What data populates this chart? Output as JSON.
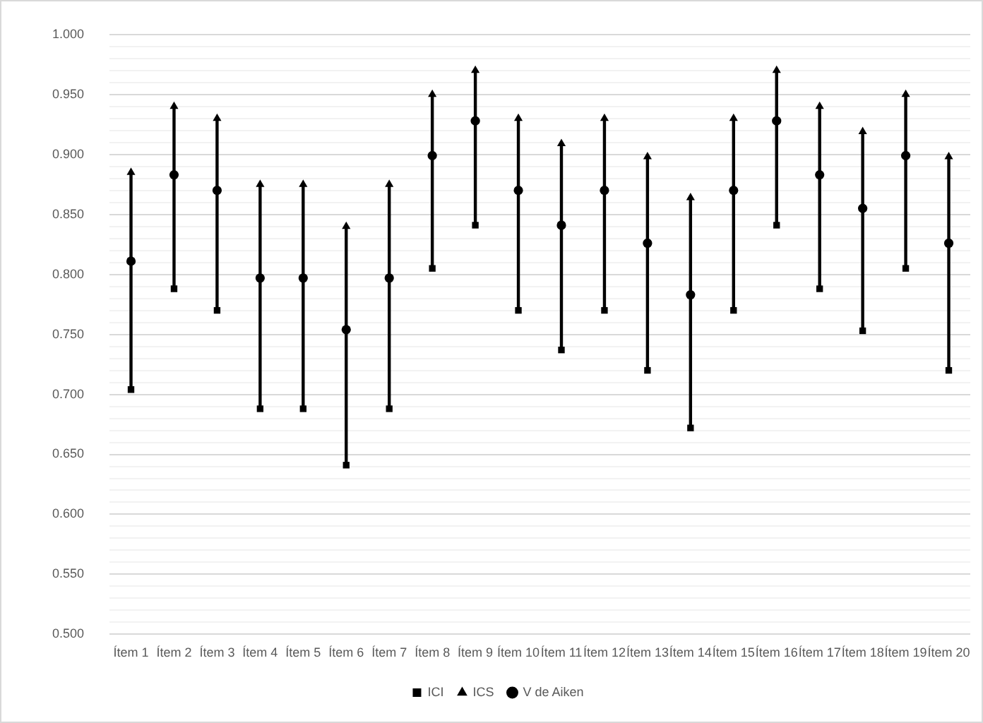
{
  "chart_data": {
    "type": "scatter",
    "categories": [
      "Ítem 1",
      "Ítem 2",
      "Ítem 3",
      "Ítem 4",
      "Ítem 5",
      "Ítem 6",
      "Ítem 7",
      "Ítem 8",
      "Ítem 9",
      "Ítem 10",
      "Ítem 11",
      "Ítem 12",
      "Ítem 13",
      "Ítem 14",
      "Ítem 15",
      "Ítem 16",
      "Ítem 17",
      "Ítem 18",
      "Ítem 19",
      "Ítem 20"
    ],
    "series": [
      {
        "name": "ICI",
        "color": "#000000",
        "marker": "square",
        "values": [
          0.704,
          0.788,
          0.77,
          0.688,
          0.688,
          0.641,
          0.688,
          0.805,
          0.841,
          0.77,
          0.737,
          0.77,
          0.72,
          0.672,
          0.77,
          0.841,
          0.788,
          0.753,
          0.805,
          0.72
        ]
      },
      {
        "name": "ICS",
        "color": "#000000",
        "marker": "triangle",
        "values": [
          0.885,
          0.94,
          0.93,
          0.875,
          0.875,
          0.84,
          0.875,
          0.95,
          0.97,
          0.93,
          0.909,
          0.93,
          0.898,
          0.864,
          0.93,
          0.97,
          0.94,
          0.919,
          0.95,
          0.898
        ]
      },
      {
        "name": "V de Aiken",
        "color": "#000000",
        "marker": "circle",
        "values": [
          0.811,
          0.883,
          0.87,
          0.797,
          0.797,
          0.754,
          0.797,
          0.899,
          0.928,
          0.87,
          0.841,
          0.87,
          0.826,
          0.783,
          0.87,
          0.928,
          0.883,
          0.855,
          0.899,
          0.826
        ]
      }
    ],
    "ylim": [
      0.5,
      1.0
    ],
    "yticks": [
      {
        "value": 0.5,
        "label": "0.500"
      },
      {
        "value": 0.51,
        "label": null
      },
      {
        "value": 0.52,
        "label": null
      },
      {
        "value": 0.53,
        "label": null
      },
      {
        "value": 0.54,
        "label": null
      },
      {
        "value": 0.55,
        "label": "0.550"
      },
      {
        "value": 0.56,
        "label": null
      },
      {
        "value": 0.57,
        "label": null
      },
      {
        "value": 0.58,
        "label": null
      },
      {
        "value": 0.59,
        "label": null
      },
      {
        "value": 0.6,
        "label": "0.600"
      },
      {
        "value": 0.61,
        "label": null
      },
      {
        "value": 0.62,
        "label": null
      },
      {
        "value": 0.63,
        "label": null
      },
      {
        "value": 0.64,
        "label": null
      },
      {
        "value": 0.65,
        "label": "0.650"
      },
      {
        "value": 0.66,
        "label": null
      },
      {
        "value": 0.67,
        "label": null
      },
      {
        "value": 0.68,
        "label": null
      },
      {
        "value": 0.69,
        "label": null
      },
      {
        "value": 0.7,
        "label": "0.700"
      },
      {
        "value": 0.71,
        "label": null
      },
      {
        "value": 0.72,
        "label": null
      },
      {
        "value": 0.73,
        "label": null
      },
      {
        "value": 0.74,
        "label": null
      },
      {
        "value": 0.75,
        "label": "0.750"
      },
      {
        "value": 0.76,
        "label": null
      },
      {
        "value": 0.77,
        "label": null
      },
      {
        "value": 0.78,
        "label": null
      },
      {
        "value": 0.79,
        "label": null
      },
      {
        "value": 0.8,
        "label": "0.800"
      },
      {
        "value": 0.81,
        "label": null
      },
      {
        "value": 0.82,
        "label": null
      },
      {
        "value": 0.83,
        "label": null
      },
      {
        "value": 0.84,
        "label": null
      },
      {
        "value": 0.85,
        "label": "0.850"
      },
      {
        "value": 0.86,
        "label": null
      },
      {
        "value": 0.87,
        "label": null
      },
      {
        "value": 0.88,
        "label": null
      },
      {
        "value": 0.89,
        "label": null
      },
      {
        "value": 0.9,
        "label": "0.900"
      },
      {
        "value": 0.91,
        "label": null
      },
      {
        "value": 0.92,
        "label": null
      },
      {
        "value": 0.93,
        "label": null
      },
      {
        "value": 0.94,
        "label": null
      },
      {
        "value": 0.95,
        "label": "0.950"
      },
      {
        "value": 0.96,
        "label": null
      },
      {
        "value": 0.97,
        "label": null
      },
      {
        "value": 0.98,
        "label": null
      },
      {
        "value": 0.99,
        "label": null
      },
      {
        "value": 1.0,
        "label": "1.000"
      }
    ],
    "grid": "y",
    "legend": "bottom"
  }
}
